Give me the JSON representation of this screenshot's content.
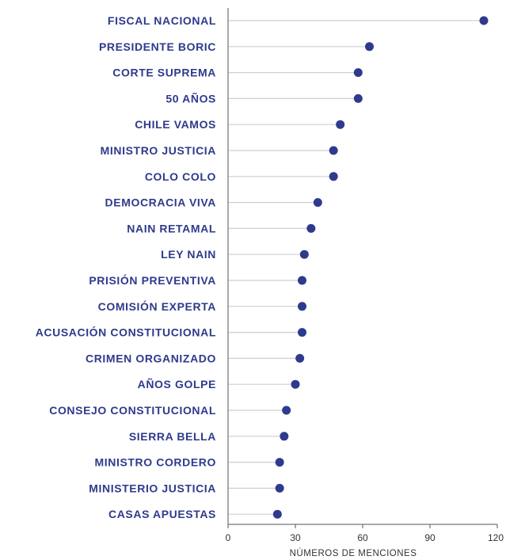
{
  "colors": {
    "accent": "#2e3a8c",
    "stem": "#cfcfcf",
    "axis": "#555555",
    "text": "#333333"
  },
  "chart_data": {
    "type": "lollipop",
    "orientation": "horizontal",
    "categories": [
      "FISCAL NACIONAL",
      "PRESIDENTE BORIC",
      "CORTE SUPREMA",
      "50 AÑOS",
      "CHILE VAMOS",
      "MINISTRO JUSTICIA",
      "COLO COLO",
      "DEMOCRACIA VIVA",
      "NAIN RETAMAL",
      "LEY NAIN",
      "PRISIÓN PREVENTIVA",
      "COMISIÓN EXPERTA",
      "ACUSACIÓN CONSTITUCIONAL",
      "CRIMEN ORGANIZADO",
      "AÑOS GOLPE",
      "CONSEJO CONSTITUCIONAL",
      "SIERRA BELLA",
      "MINISTRO CORDERO",
      "MINISTERIO JUSTICIA",
      "CASAS APUESTAS"
    ],
    "values": [
      114,
      63,
      58,
      58,
      50,
      47,
      47,
      40,
      37,
      34,
      33,
      33,
      33,
      32,
      30,
      26,
      25,
      23,
      23,
      22
    ],
    "xlabel": "NÚMEROS DE MENCIONES",
    "ylabel": "",
    "xlim": [
      0,
      120
    ],
    "xticks": [
      0,
      30,
      60,
      90,
      120
    ],
    "grid": false,
    "legend": "none"
  }
}
